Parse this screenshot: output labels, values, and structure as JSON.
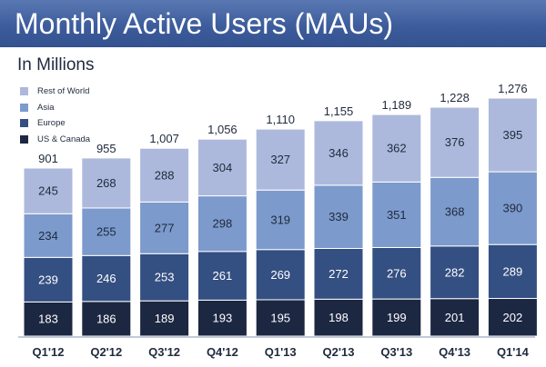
{
  "header": {
    "title": "Monthly Active Users (MAUs)"
  },
  "subtitle": "In Millions",
  "colors": {
    "banner": "#3f5e9d",
    "rest_of_world": "#adb9dc",
    "asia": "#7c9acc",
    "europe": "#344f82",
    "us_canada": "#1c2742"
  },
  "chart_data": {
    "type": "bar",
    "stacked": true,
    "categories": [
      "Q1'12",
      "Q2'12",
      "Q3'12",
      "Q4'12",
      "Q1'13",
      "Q2'13",
      "Q3'13",
      "Q4'13",
      "Q1'14"
    ],
    "series": [
      {
        "name": "US & Canada",
        "color": "#1c2742",
        "values": [
          183,
          186,
          189,
          193,
          195,
          198,
          199,
          201,
          202
        ]
      },
      {
        "name": "Europe",
        "color": "#344f82",
        "values": [
          239,
          246,
          253,
          261,
          269,
          272,
          276,
          282,
          289
        ]
      },
      {
        "name": "Asia",
        "color": "#7c9acc",
        "values": [
          234,
          255,
          277,
          298,
          319,
          339,
          351,
          368,
          390
        ]
      },
      {
        "name": "Rest of World",
        "color": "#adb9dc",
        "values": [
          245,
          268,
          288,
          304,
          327,
          346,
          362,
          376,
          395
        ]
      }
    ],
    "totals": [
      "901",
      "955",
      "1,007",
      "1,056",
      "1,110",
      "1,155",
      "1,189",
      "1,228",
      "1,276"
    ],
    "legend_order": [
      "Rest of World",
      "Asia",
      "Europe",
      "US & Canada"
    ],
    "legend_position": "top-left",
    "title": "Monthly Active Users (MAUs)",
    "subtitle": "In Millions",
    "xlabel": "",
    "ylabel": "",
    "ylim": [
      0,
      1340
    ],
    "grid": false
  }
}
